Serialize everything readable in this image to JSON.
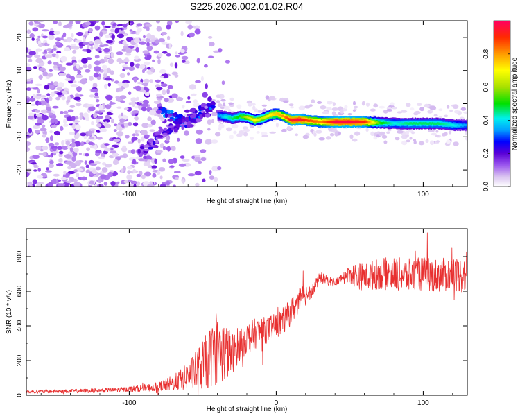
{
  "figure_title": "S225.2026.002.01.02.R04",
  "colors": {
    "line": "#e83030",
    "axis": "#000000",
    "colormap": [
      "#ffffff",
      "#d9c2f0",
      "#9a55ee",
      "#5a00d6",
      "#0000ff",
      "#00a0ff",
      "#00f0f0",
      "#00e000",
      "#a8e000",
      "#ffff00",
      "#ff9a00",
      "#ff2a00",
      "#ff0060"
    ]
  },
  "chart_data": [
    {
      "type": "heatmap",
      "title": "",
      "xlabel": "Height of straight line (km)",
      "ylabel": "Frequency (Hz)",
      "xlim": [
        -170,
        130
      ],
      "ylim": [
        -25,
        25
      ],
      "x_ticks": [
        -100,
        0,
        100
      ],
      "x_tick_labels": [
        "-100",
        "0",
        "100"
      ],
      "y_ticks": [
        -20,
        -10,
        0,
        10,
        20
      ],
      "y_tick_labels": [
        "-20",
        "-10",
        "0",
        "10",
        "20"
      ],
      "colorbar": {
        "label": "Normalized spectral amplitude",
        "range": [
          0,
          1
        ],
        "ticks": [
          0.0,
          0.2,
          0.4,
          0.6,
          0.8
        ],
        "tick_labels": [
          "0.0",
          "0.2",
          "0.4",
          "0.6",
          "0.8"
        ]
      },
      "ridge": {
        "x": [
          -40,
          -35,
          -30,
          -25,
          -20,
          -15,
          -10,
          -5,
          0,
          5,
          10,
          15,
          20,
          30,
          40,
          50,
          60,
          70,
          80,
          90,
          100,
          110,
          120,
          130
        ],
        "freq": [
          -3.5,
          -4,
          -4.5,
          -3.8,
          -4.2,
          -5,
          -4.5,
          -3.5,
          -3,
          -4,
          -5,
          -4.8,
          -5,
          -5.5,
          -5.5,
          -5.5,
          -5.5,
          -5.8,
          -6,
          -6,
          -6,
          -6,
          -6.5,
          -6.5
        ],
        "amplitude": [
          0.4,
          0.5,
          0.55,
          0.6,
          0.7,
          0.75,
          0.7,
          0.75,
          0.8,
          0.85,
          0.95,
          0.98,
          0.9,
          0.85,
          0.98,
          0.98,
          0.92,
          0.6,
          0.5,
          0.55,
          0.55,
          0.55,
          0.5,
          0.4
        ]
      },
      "branches": [
        {
          "x": [
            -80,
            -70,
            -60,
            -50,
            -42
          ],
          "freq": [
            -2,
            -4,
            -6,
            -2,
            0
          ],
          "amplitude": 0.35
        },
        {
          "x": [
            -92,
            -85,
            -75,
            -65,
            -55,
            -45
          ],
          "freq": [
            -15,
            -12,
            -8,
            -6,
            -4,
            -2
          ],
          "amplitude": 0.25
        }
      ]
    },
    {
      "type": "line",
      "title": "",
      "xlabel": "Height of straight line (km)",
      "ylabel": "SNR (10 * v/v)",
      "xlim": [
        -170,
        130
      ],
      "ylim": [
        0,
        960
      ],
      "x_ticks": [
        -100,
        0,
        100
      ],
      "x_tick_labels": [
        "-100",
        "0",
        "100"
      ],
      "y_ticks": [
        0,
        200,
        400,
        600,
        800
      ],
      "y_tick_labels": [
        "0",
        "200",
        "400",
        "600",
        "800"
      ],
      "series": [
        {
          "name": "SNR",
          "envelope_x": [
            -170,
            -150,
            -130,
            -110,
            -100,
            -90,
            -80,
            -70,
            -60,
            -50,
            -45,
            -40,
            -35,
            -30,
            -25,
            -20,
            -15,
            -10,
            -5,
            0,
            5,
            10,
            15,
            20,
            25,
            30,
            35,
            40,
            45,
            50,
            55,
            60,
            70,
            80,
            90,
            100,
            110,
            120,
            125,
            130
          ],
          "envelope_mean": [
            20,
            22,
            25,
            30,
            35,
            40,
            50,
            70,
            110,
            170,
            220,
            260,
            250,
            240,
            300,
            330,
            350,
            370,
            380,
            400,
            430,
            480,
            540,
            580,
            610,
            680,
            660,
            650,
            680,
            700,
            690,
            680,
            700,
            700,
            690,
            700,
            690,
            700,
            690,
            720
          ],
          "envelope_noise": [
            8,
            8,
            9,
            10,
            12,
            15,
            20,
            35,
            60,
            110,
            140,
            150,
            140,
            90,
            80,
            70,
            70,
            60,
            60,
            55,
            60,
            60,
            55,
            50,
            30,
            25,
            20,
            20,
            20,
            40,
            60,
            60,
            70,
            75,
            75,
            75,
            75,
            75,
            80,
            100
          ]
        }
      ]
    }
  ]
}
